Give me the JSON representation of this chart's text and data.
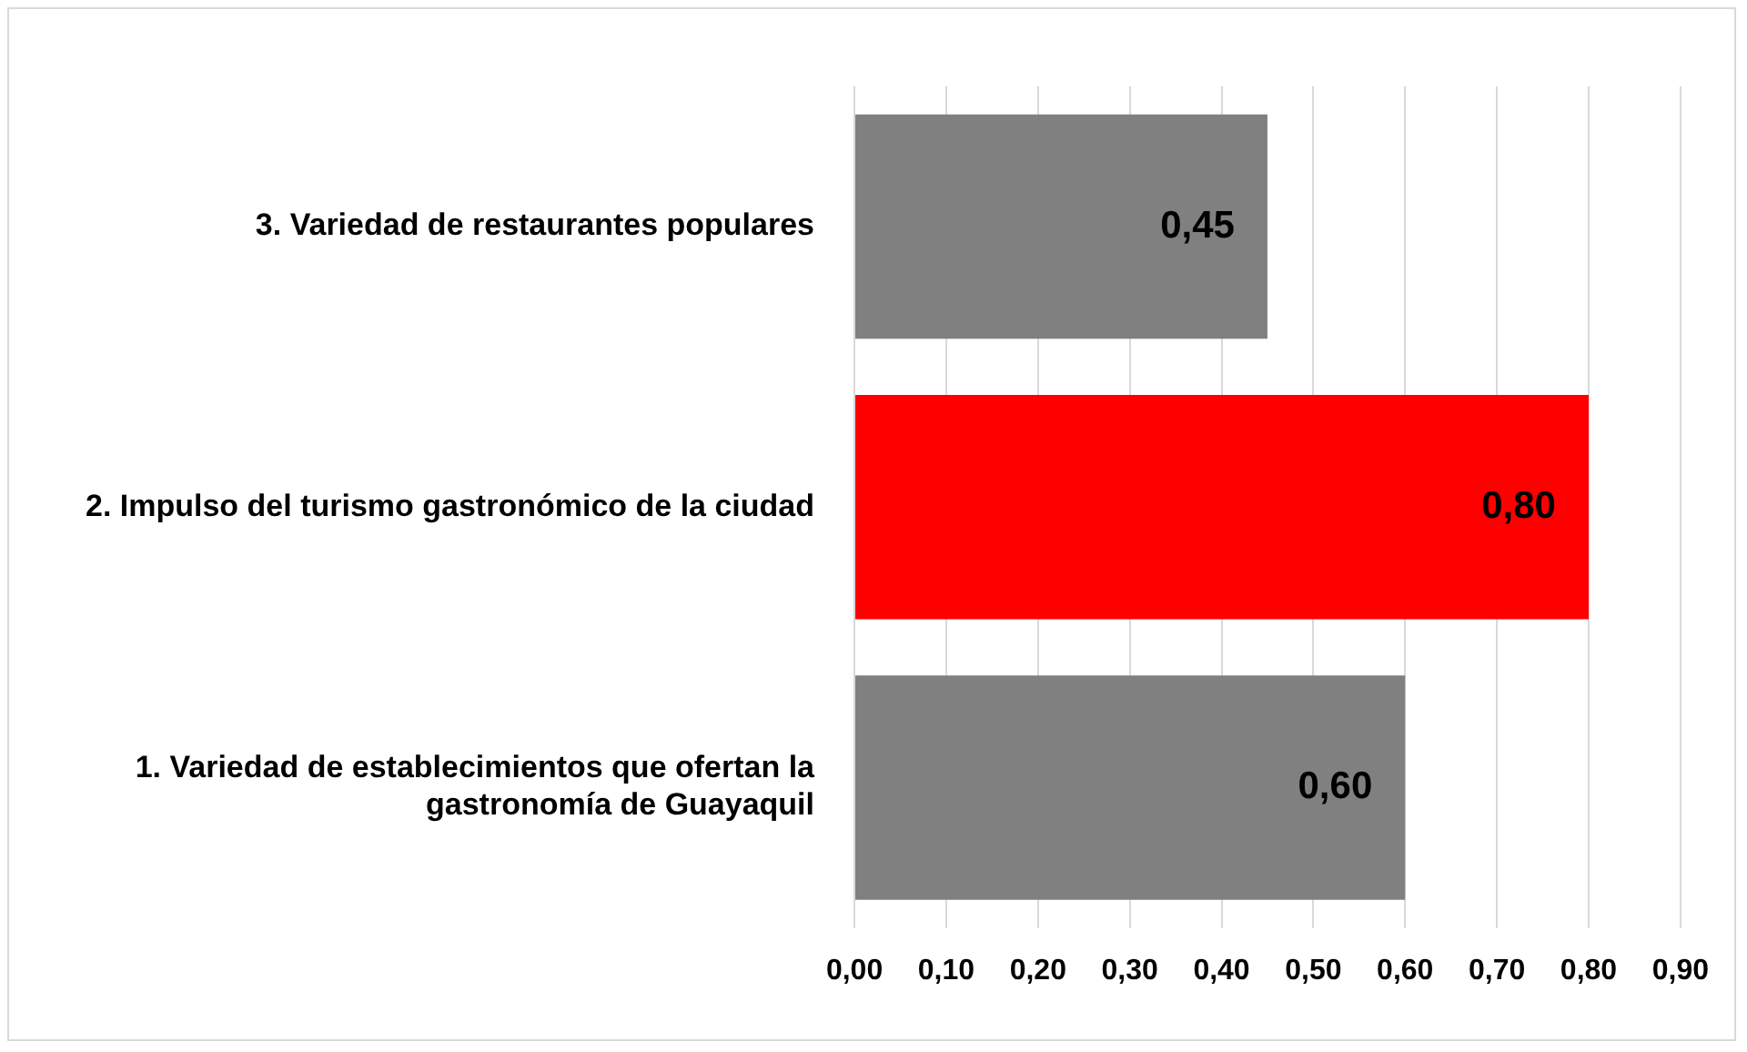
{
  "chart_data": {
    "type": "bar",
    "orientation": "horizontal",
    "categories": [
      "3. Variedad de restaurantes populares",
      "2. Impulso del turismo gastronómico de la ciudad",
      "1. Variedad de establecimientos que ofertan la gastronomía de Guayaquil"
    ],
    "values": [
      0.45,
      0.8,
      0.6
    ],
    "colors": [
      "#808080",
      "#ff0000",
      "#808080"
    ],
    "value_labels": [
      "0,45",
      "0,80",
      "0,60"
    ],
    "xlim": [
      0,
      0.9
    ],
    "xticks": [
      {
        "value": 0,
        "label": "0,00"
      },
      {
        "value": 0.1,
        "label": "0,10"
      },
      {
        "value": 0.2,
        "label": "0,20"
      },
      {
        "value": 0.3,
        "label": "0,30"
      },
      {
        "value": 0.4,
        "label": "0,40"
      },
      {
        "value": 0.5,
        "label": "0,50"
      },
      {
        "value": 0.6,
        "label": "0,60"
      },
      {
        "value": 0.7,
        "label": "0,70"
      },
      {
        "value": 0.8,
        "label": "0,80"
      },
      {
        "value": 0.9,
        "label": "0,90"
      }
    ],
    "grid": "x",
    "legend": false
  }
}
